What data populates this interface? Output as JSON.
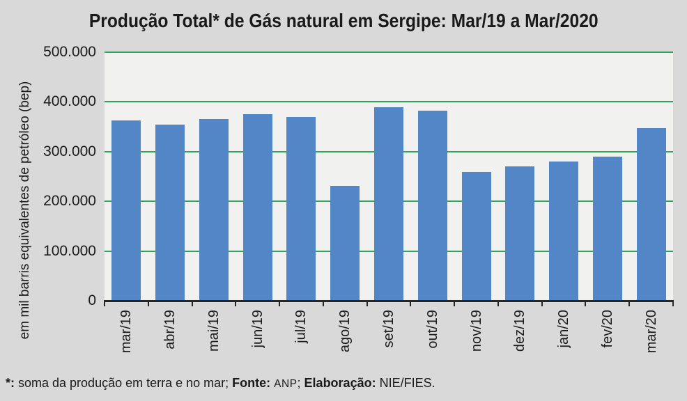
{
  "chart_data": {
    "type": "bar",
    "title": "Produção Total* de Gás natural em Sergipe: Mar/19 a Mar/2020",
    "xlabel": "",
    "ylabel": "em mil barris equivalentes de petróleo (bep)",
    "categories": [
      "mar/19",
      "abr/19",
      "mai/19",
      "jun/19",
      "jul/19",
      "ago/19",
      "set/19",
      "out/19",
      "nov/19",
      "dez/19",
      "jan/20",
      "fev/20",
      "mar/20"
    ],
    "values": [
      363000,
      354000,
      365000,
      376000,
      370000,
      231000,
      389000,
      382000,
      259000,
      270000,
      280000,
      290000,
      347000
    ],
    "ylim": [
      0,
      500000
    ],
    "yticks": [
      {
        "value": 0,
        "label": "0"
      },
      {
        "value": 100000,
        "label": "100.000"
      },
      {
        "value": 200000,
        "label": "200.000"
      },
      {
        "value": 300000,
        "label": "300.000"
      },
      {
        "value": 400000,
        "label": "400.000"
      },
      {
        "value": 500000,
        "label": "500.000"
      }
    ],
    "gridline_values": [
      100000,
      200000,
      300000,
      400000,
      500000
    ],
    "grid": true,
    "legend": false,
    "colors": {
      "bar": "#5286c6",
      "gridline": "#32a05f",
      "plot_bg": "#f1f2f0",
      "page_bg": "#d9d9d9",
      "axis": "#262626",
      "text": "#1a1a1a"
    }
  },
  "footnote": {
    "segments": [
      {
        "text": "*:",
        "bold": true,
        "alt": false
      },
      {
        "text": " soma da produção em terra e no mar; ",
        "bold": false,
        "alt": false
      },
      {
        "text": "Fonte:",
        "bold": true,
        "alt": false
      },
      {
        "text": "  ",
        "bold": false,
        "alt": false
      },
      {
        "text": "ANP",
        "bold": false,
        "alt": true
      },
      {
        "text": "; ",
        "bold": false,
        "alt": false
      },
      {
        "text": "Elaboração:",
        "bold": true,
        "alt": false
      },
      {
        "text": " NIE/FIES.",
        "bold": false,
        "alt": false
      }
    ]
  }
}
